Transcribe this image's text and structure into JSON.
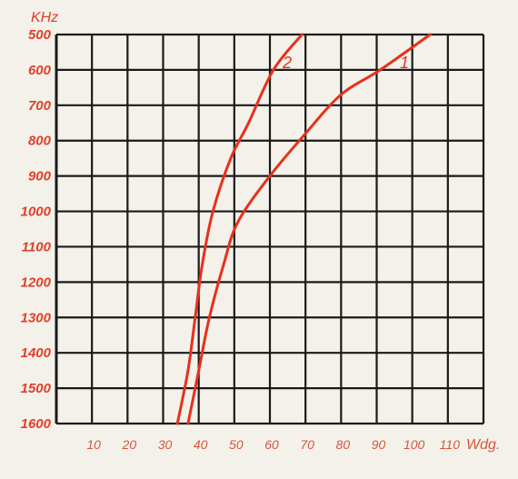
{
  "chart_data": {
    "type": "line",
    "ylabel": "KHz",
    "xlabel": "Wdg.",
    "xlim": [
      0,
      120
    ],
    "ylim": [
      500,
      1600
    ],
    "y_inverted": true,
    "grid": true,
    "x_ticks": [
      "10",
      "20",
      "30",
      "40",
      "50",
      "60",
      "70",
      "80",
      "90",
      "100",
      "110"
    ],
    "y_ticks": [
      "500",
      "600",
      "700",
      "800",
      "900",
      "1000",
      "1100",
      "1200",
      "1300",
      "1400",
      "1500",
      "1600"
    ],
    "series": [
      {
        "name": "1",
        "points": [
          [
            105,
            500
          ],
          [
            91,
            600
          ],
          [
            80,
            670
          ],
          [
            70,
            780
          ],
          [
            60,
            900
          ],
          [
            51,
            1030
          ],
          [
            47,
            1150
          ],
          [
            43,
            1300
          ],
          [
            40,
            1450
          ],
          [
            37,
            1600
          ]
        ]
      },
      {
        "name": "2",
        "points": [
          [
            69,
            500
          ],
          [
            61,
            600
          ],
          [
            54,
            750
          ],
          [
            49,
            850
          ],
          [
            44,
            1000
          ],
          [
            41,
            1150
          ],
          [
            39,
            1300
          ],
          [
            37,
            1450
          ],
          [
            34,
            1600
          ]
        ]
      }
    ]
  },
  "style": {
    "grid_color": "#1a1a1a",
    "curve_color": "#e8301c",
    "ytick_color": "#e0402a",
    "xtick_color": "#d8553c",
    "background": "#f3f1ea"
  }
}
